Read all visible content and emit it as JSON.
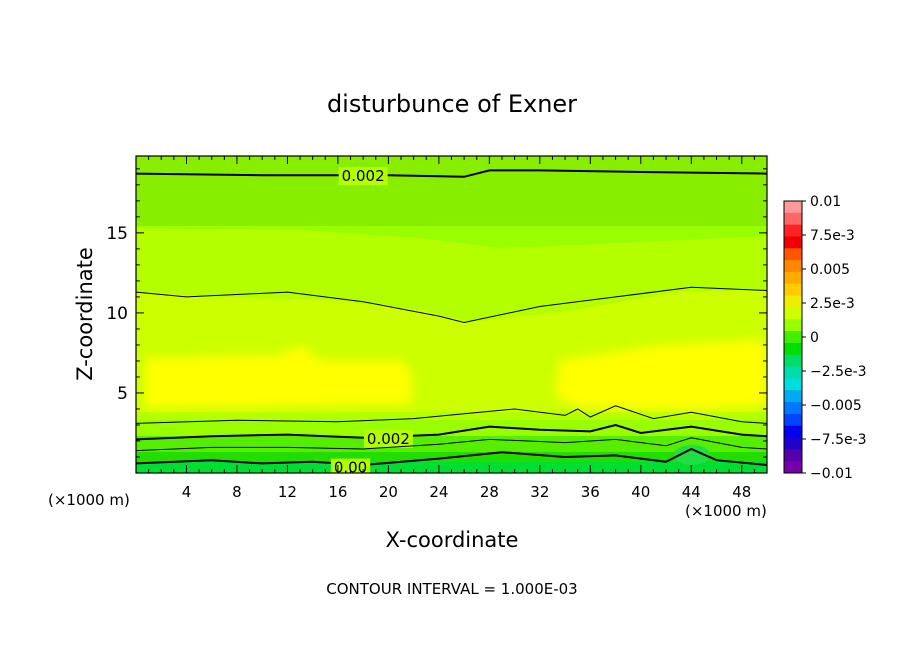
{
  "chart_data": {
    "type": "heatmap",
    "title": "disturbunce of Exner",
    "xlabel": "X-coordinate",
    "ylabel": "Z-coordinate",
    "x_unit_left": "(×1000 m)",
    "x_unit_right": "(×1000 m)",
    "xlim": [
      0,
      50
    ],
    "ylim": [
      0,
      19.8
    ],
    "x_ticks": [
      4,
      8,
      12,
      16,
      20,
      24,
      28,
      32,
      36,
      40,
      44,
      48
    ],
    "y_ticks": [
      5,
      10,
      15
    ],
    "footer": "CONTOUR INTERVAL = 1.000E-03",
    "colorbar": {
      "labels": [
        "0.01",
        "7.5e-3",
        "0.005",
        "2.5e-3",
        "0",
        "−2.5e-3",
        "−0.005",
        "−7.5e-3",
        "−0.01"
      ],
      "colors": [
        "#ff9999",
        "#ff6666",
        "#ff2222",
        "#ee0000",
        "#ff5500",
        "#ff8800",
        "#ffaa00",
        "#ffcc00",
        "#eeee00",
        "#ccff00",
        "#99ff00",
        "#44ee00",
        "#00dd00",
        "#00dd66",
        "#00ddaa",
        "#00dddd",
        "#00aaee",
        "#0077ff",
        "#0044ff",
        "#0000ee",
        "#2200cc",
        "#5500aa",
        "#7700aa"
      ]
    },
    "contours": [
      {
        "level": 0.002,
        "label": "0.002",
        "label_x": 20,
        "label_z": 2.2,
        "points": [
          [
            0,
            2.1
          ],
          [
            6,
            2.3
          ],
          [
            12,
            2.4
          ],
          [
            18,
            2.2
          ],
          [
            24,
            2.4
          ],
          [
            28,
            2.9
          ],
          [
            32,
            2.7
          ],
          [
            36,
            2.6
          ],
          [
            38,
            3.0
          ],
          [
            40,
            2.5
          ],
          [
            44,
            2.9
          ],
          [
            48,
            2.4
          ],
          [
            50,
            2.3
          ]
        ]
      },
      {
        "level": 0.002,
        "label": "0.002",
        "label_x": 18,
        "label_z": 18.6,
        "points": [
          [
            0,
            18.7
          ],
          [
            10,
            18.6
          ],
          [
            20,
            18.6
          ],
          [
            26,
            18.5
          ],
          [
            28,
            18.9
          ],
          [
            32,
            18.9
          ],
          [
            40,
            18.8
          ],
          [
            50,
            18.7
          ]
        ]
      },
      {
        "level": 0.0,
        "label": "0.00",
        "label_x": 17,
        "label_z": 0.4,
        "points": [
          [
            0,
            0.6
          ],
          [
            6,
            0.8
          ],
          [
            10,
            0.6
          ],
          [
            14,
            0.7
          ],
          [
            18,
            0.5
          ],
          [
            24,
            0.9
          ],
          [
            29,
            1.3
          ],
          [
            34,
            1.0
          ],
          [
            38,
            1.1
          ],
          [
            42,
            0.7
          ],
          [
            44,
            1.5
          ],
          [
            46,
            0.8
          ],
          [
            50,
            0.5
          ]
        ]
      },
      {
        "level": 0.001,
        "label": "",
        "label_x": 0,
        "label_z": 0,
        "points": [
          [
            0,
            1.4
          ],
          [
            6,
            1.6
          ],
          [
            12,
            1.6
          ],
          [
            18,
            1.5
          ],
          [
            24,
            1.8
          ],
          [
            28,
            2.1
          ],
          [
            34,
            1.9
          ],
          [
            38,
            2.1
          ],
          [
            42,
            1.7
          ],
          [
            44,
            2.2
          ],
          [
            48,
            1.6
          ],
          [
            50,
            1.5
          ]
        ]
      },
      {
        "level": 0.003,
        "label": "",
        "label_x": 0,
        "label_z": 0,
        "points": [
          [
            0,
            3.1
          ],
          [
            8,
            3.3
          ],
          [
            16,
            3.2
          ],
          [
            22,
            3.4
          ],
          [
            26,
            3.7
          ],
          [
            30,
            4.0
          ],
          [
            34,
            3.6
          ],
          [
            35,
            4.0
          ],
          [
            36,
            3.5
          ],
          [
            38,
            4.2
          ],
          [
            41,
            3.4
          ],
          [
            44,
            3.8
          ],
          [
            48,
            3.2
          ],
          [
            50,
            3.1
          ]
        ]
      },
      {
        "level": 0.003,
        "label": "",
        "label_x": 0,
        "label_z": 0,
        "points": [
          [
            0,
            11.3
          ],
          [
            4,
            11.0
          ],
          [
            12,
            11.3
          ],
          [
            18,
            10.7
          ],
          [
            24,
            9.8
          ],
          [
            26,
            9.4
          ],
          [
            32,
            10.4
          ],
          [
            38,
            11.0
          ],
          [
            44,
            11.6
          ],
          [
            50,
            11.4
          ]
        ]
      }
    ]
  }
}
